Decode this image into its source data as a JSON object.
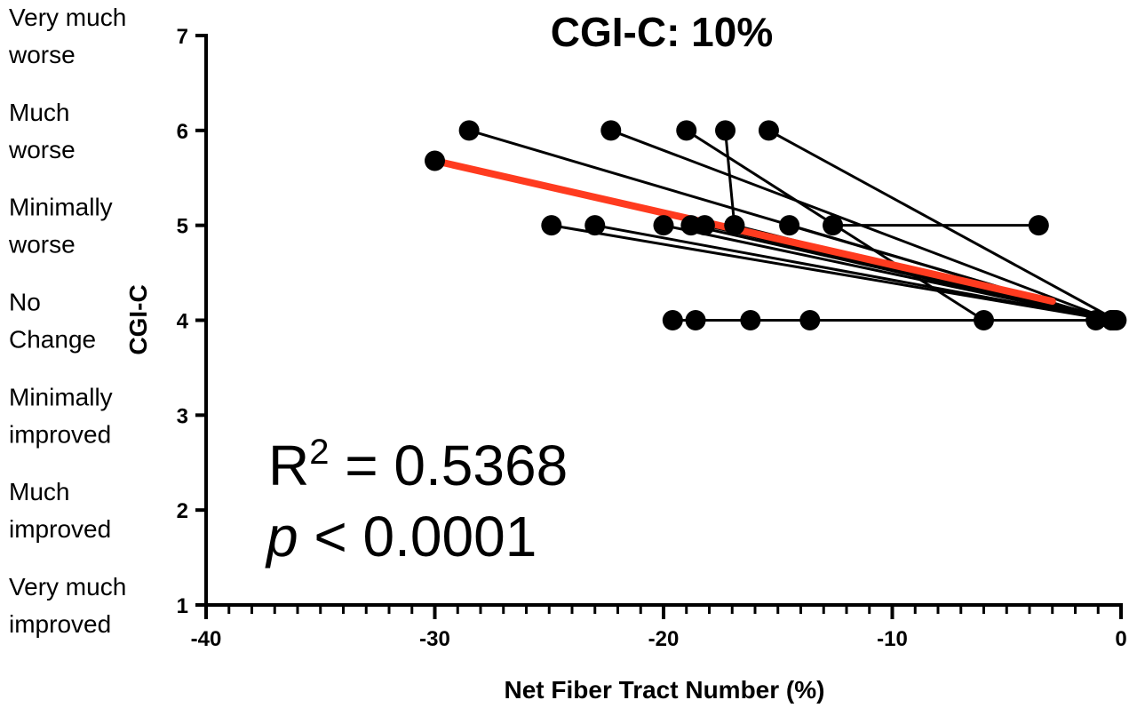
{
  "chart_data": {
    "type": "scatter",
    "title": "CGI-C: 10%",
    "xlabel": "Net Fiber Tract Number (%)",
    "ylabel": "CGI-C",
    "xlim": [
      -40,
      0
    ],
    "ylim": [
      1,
      7
    ],
    "x_ticks": [
      "-40",
      "-30",
      "-20",
      "-10",
      "0"
    ],
    "y_ticks": [
      "1",
      "2",
      "3",
      "4",
      "5",
      "6",
      "7"
    ],
    "x_tick_values": [
      -40,
      -30,
      -20,
      -10,
      0
    ],
    "y_tick_values": [
      1,
      2,
      3,
      4,
      5,
      6,
      7
    ],
    "y_category_labels": [
      {
        "value": 7,
        "line1": "Very much",
        "line2": "worse"
      },
      {
        "value": 6,
        "line1": "Much",
        "line2": "worse"
      },
      {
        "value": 5,
        "line1": "Minimally",
        "line2": "worse"
      },
      {
        "value": 4,
        "line1": "No",
        "line2": "Change"
      },
      {
        "value": 3,
        "line1": "Minimally",
        "line2": "improved"
      },
      {
        "value": 2,
        "line1": "Much",
        "line2": "improved"
      },
      {
        "value": 1,
        "line1": "Very much",
        "line2": "improved"
      }
    ],
    "paired_points": [
      {
        "x1": -28.5,
        "y1": 6,
        "x2": -0.4,
        "y2": 4
      },
      {
        "x1": -22.3,
        "y1": 6,
        "x2": -0.4,
        "y2": 4
      },
      {
        "x1": -19.0,
        "y1": 6,
        "x2": -6.0,
        "y2": 4
      },
      {
        "x1": -17.3,
        "y1": 6,
        "x2": -16.9,
        "y2": 5
      },
      {
        "x1": -15.4,
        "y1": 6,
        "x2": -0.2,
        "y2": 4
      },
      {
        "x1": -24.9,
        "y1": 5,
        "x2": -0.4,
        "y2": 4
      },
      {
        "x1": -23.0,
        "y1": 5,
        "x2": -0.4,
        "y2": 4
      },
      {
        "x1": -20.0,
        "y1": 5,
        "x2": -0.4,
        "y2": 4
      },
      {
        "x1": -18.8,
        "y1": 5,
        "x2": -0.4,
        "y2": 4
      },
      {
        "x1": -18.2,
        "y1": 5,
        "x2": -0.4,
        "y2": 4
      },
      {
        "x1": -16.9,
        "y1": 5,
        "x2": -0.4,
        "y2": 4
      },
      {
        "x1": -14.5,
        "y1": 5,
        "x2": -0.4,
        "y2": 4
      },
      {
        "x1": -12.6,
        "y1": 5,
        "x2": -3.6,
        "y2": 5
      },
      {
        "x1": -19.6,
        "y1": 4,
        "x2": -1.1,
        "y2": 4
      },
      {
        "x1": -18.6,
        "y1": 4,
        "x2": -0.3,
        "y2": 4
      },
      {
        "x1": -16.2,
        "y1": 4,
        "x2": -13.6,
        "y2": 4
      }
    ],
    "mean_line": {
      "x1": -30.0,
      "y1": 5.68,
      "x2": -3.0,
      "y2": 4.2,
      "start_point": true
    },
    "colors": {
      "points": "#000000",
      "mean_line": "#ff3b1f"
    }
  },
  "annotations": {
    "r2_base": "R",
    "r2_sup": "2",
    "r2_rest": " = 0.5368",
    "p_italic": "p",
    "p_rest": " < 0.0001"
  }
}
